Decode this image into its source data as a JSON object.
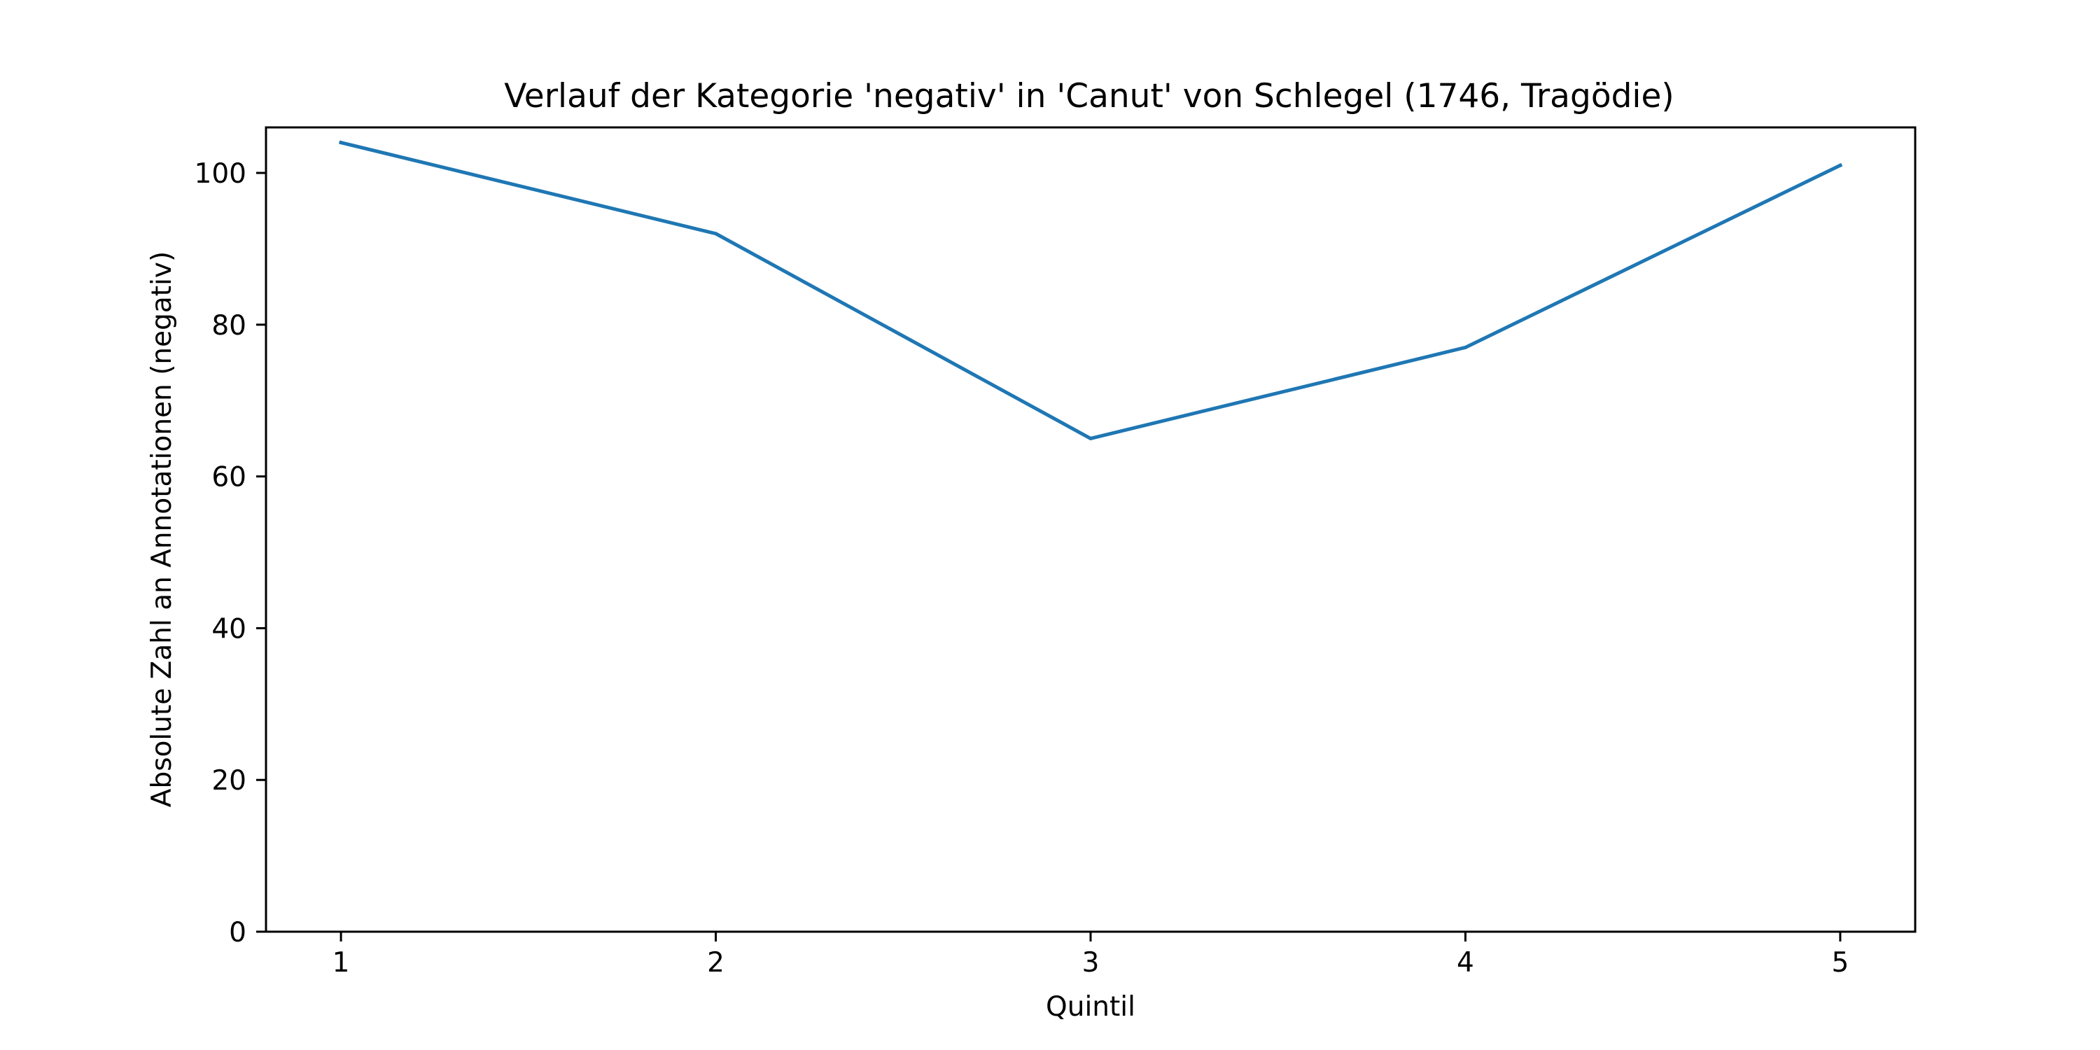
{
  "chart_data": {
    "type": "line",
    "title": "Verlauf der Kategorie 'negativ' in 'Canut' von Schlegel (1746, Tragödie)",
    "xlabel": "Quintil",
    "ylabel": "Absolute Zahl an Annotationen (negativ)",
    "x": [
      1,
      2,
      3,
      4,
      5
    ],
    "x_tick_labels": [
      "1",
      "2",
      "3",
      "4",
      "5"
    ],
    "y_ticks": [
      0,
      20,
      40,
      60,
      80,
      100
    ],
    "y_tick_labels": [
      "0",
      "20",
      "40",
      "60",
      "80",
      "100"
    ],
    "xlim": [
      0.8,
      5.2
    ],
    "ylim": [
      0,
      106
    ],
    "grid": false,
    "legend": false,
    "series": [
      {
        "values": [
          104,
          92,
          65,
          77,
          101
        ],
        "color": "#1f77b4"
      }
    ]
  }
}
